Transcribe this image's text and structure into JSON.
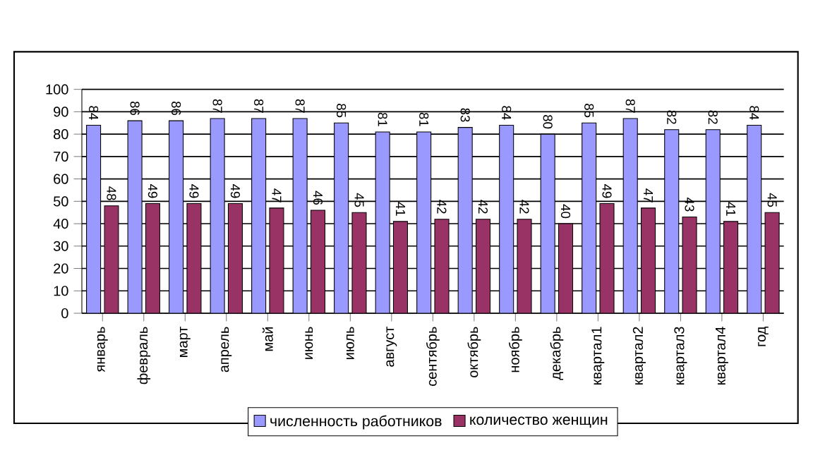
{
  "chart_data": {
    "type": "bar",
    "categories": [
      "январь",
      "февраль",
      "март",
      "апрель",
      "май",
      "июнь",
      "июль",
      "август",
      "сентябрь",
      "октябрь",
      "ноябрь",
      "декабрь",
      "квартал1",
      "квартал2",
      "квартал3",
      "квартал4",
      "год"
    ],
    "series": [
      {
        "name": "численность работников",
        "color": "#9999ff",
        "values": [
          84,
          86,
          86,
          87,
          87,
          87,
          85,
          81,
          81,
          83,
          84,
          80,
          85,
          87,
          82,
          82,
          84
        ]
      },
      {
        "name": "количество женщин",
        "color": "#993366",
        "values": [
          48,
          49,
          49,
          49,
          47,
          46,
          45,
          41,
          42,
          42,
          42,
          40,
          49,
          47,
          43,
          41,
          45
        ]
      }
    ],
    "ylim": [
      0,
      100
    ],
    "yticks": [
      0,
      10,
      20,
      30,
      40,
      50,
      60,
      70,
      80,
      90,
      100
    ],
    "grid": "y",
    "legend": "bottom",
    "data_labels": true
  }
}
